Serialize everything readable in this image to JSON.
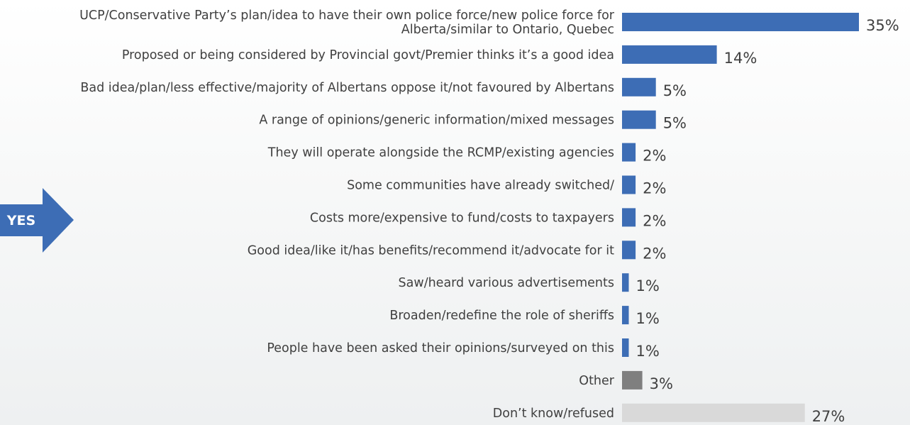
{
  "chart_data": {
    "type": "bar",
    "orientation": "horizontal",
    "categories": [
      [
        "UCP/Conservative Party’s plan/idea to have their own police force/new police force for",
        "Alberta/similar to Ontario, Quebec"
      ],
      [
        "Proposed or being considered by Provincial govt/Premier thinks it’s a good idea"
      ],
      [
        "Bad idea/plan/less effective/majority of Albertans oppose it/not favoured by Albertans"
      ],
      [
        "A range of opinions/generic information/mixed messages"
      ],
      [
        "They will operate alongside the RCMP/existing agencies"
      ],
      [
        "Some communities have already switched/"
      ],
      [
        "Costs more/expensive to fund/costs to taxpayers"
      ],
      [
        "Good idea/like it/has benefits/recommend it/advocate for it"
      ],
      [
        "Saw/heard various advertisements"
      ],
      [
        "Broaden/redefine the role of sheriffs"
      ],
      [
        "People have been asked their opinions/surveyed on this"
      ],
      [
        "Other"
      ],
      [
        "Don’t know/refused"
      ]
    ],
    "values": [
      35,
      14,
      5,
      5,
      2,
      2,
      2,
      2,
      1,
      1,
      1,
      3,
      27
    ],
    "value_labels": [
      "35%",
      "14%",
      "5%",
      "5%",
      "2%",
      "2%",
      "2%",
      "2%",
      "1%",
      "1%",
      "1%",
      "3%",
      "27%"
    ],
    "bar_colors": [
      "#3d6db5",
      "#3d6db5",
      "#3d6db5",
      "#3d6db5",
      "#3d6db5",
      "#3d6db5",
      "#3d6db5",
      "#3d6db5",
      "#3d6db5",
      "#3d6db5",
      "#3d6db5",
      "#7f7f7f",
      "#d9d9d9"
    ],
    "title": "",
    "xlabel": "",
    "ylabel": "",
    "xlim": [
      0,
      35
    ],
    "grid": false,
    "legend": "none",
    "annotation": {
      "text": "YES",
      "shape": "right-arrow",
      "color": "#3d6db5"
    }
  }
}
